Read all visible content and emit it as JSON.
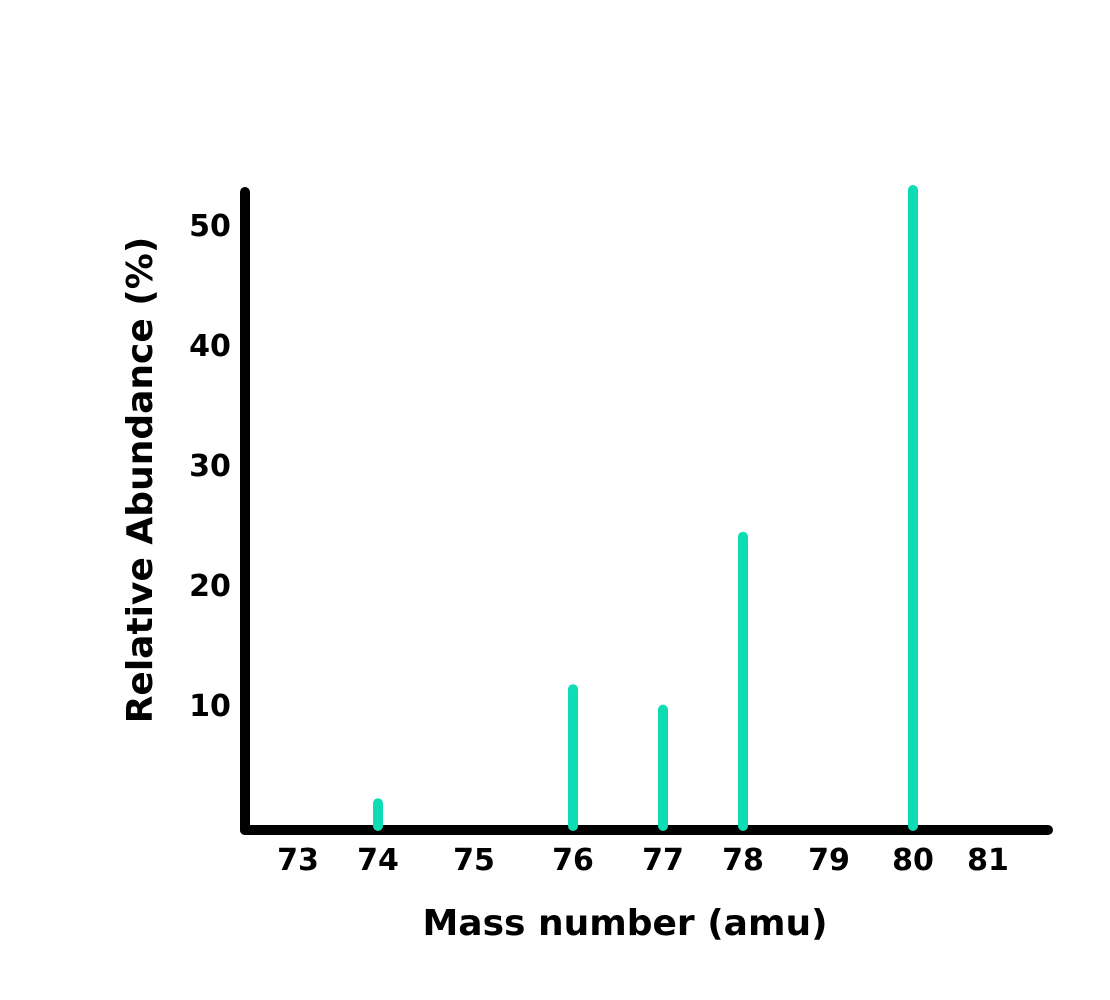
{
  "chart_data": {
    "type": "bar",
    "title": "",
    "xlabel": "Mass number (amu)",
    "ylabel": "Relative Abundance (%)",
    "x_ticks": [
      "73",
      "74",
      "75",
      "76",
      "77",
      "78",
      "79",
      "80",
      "81"
    ],
    "y_ticks": [
      "10",
      "20",
      "30",
      "40",
      "50"
    ],
    "ylim": [
      0,
      52
    ],
    "bars": [
      {
        "x": 74,
        "value": 1.9
      },
      {
        "x": 76,
        "value": 11.4
      },
      {
        "x": 77,
        "value": 9.7
      },
      {
        "x": 78,
        "value": 24.1
      },
      {
        "x": 80,
        "value": 53.0
      }
    ],
    "colors": {
      "bar": "#0ddcb4",
      "axis": "#000000"
    },
    "grid": false,
    "legend": "none"
  }
}
